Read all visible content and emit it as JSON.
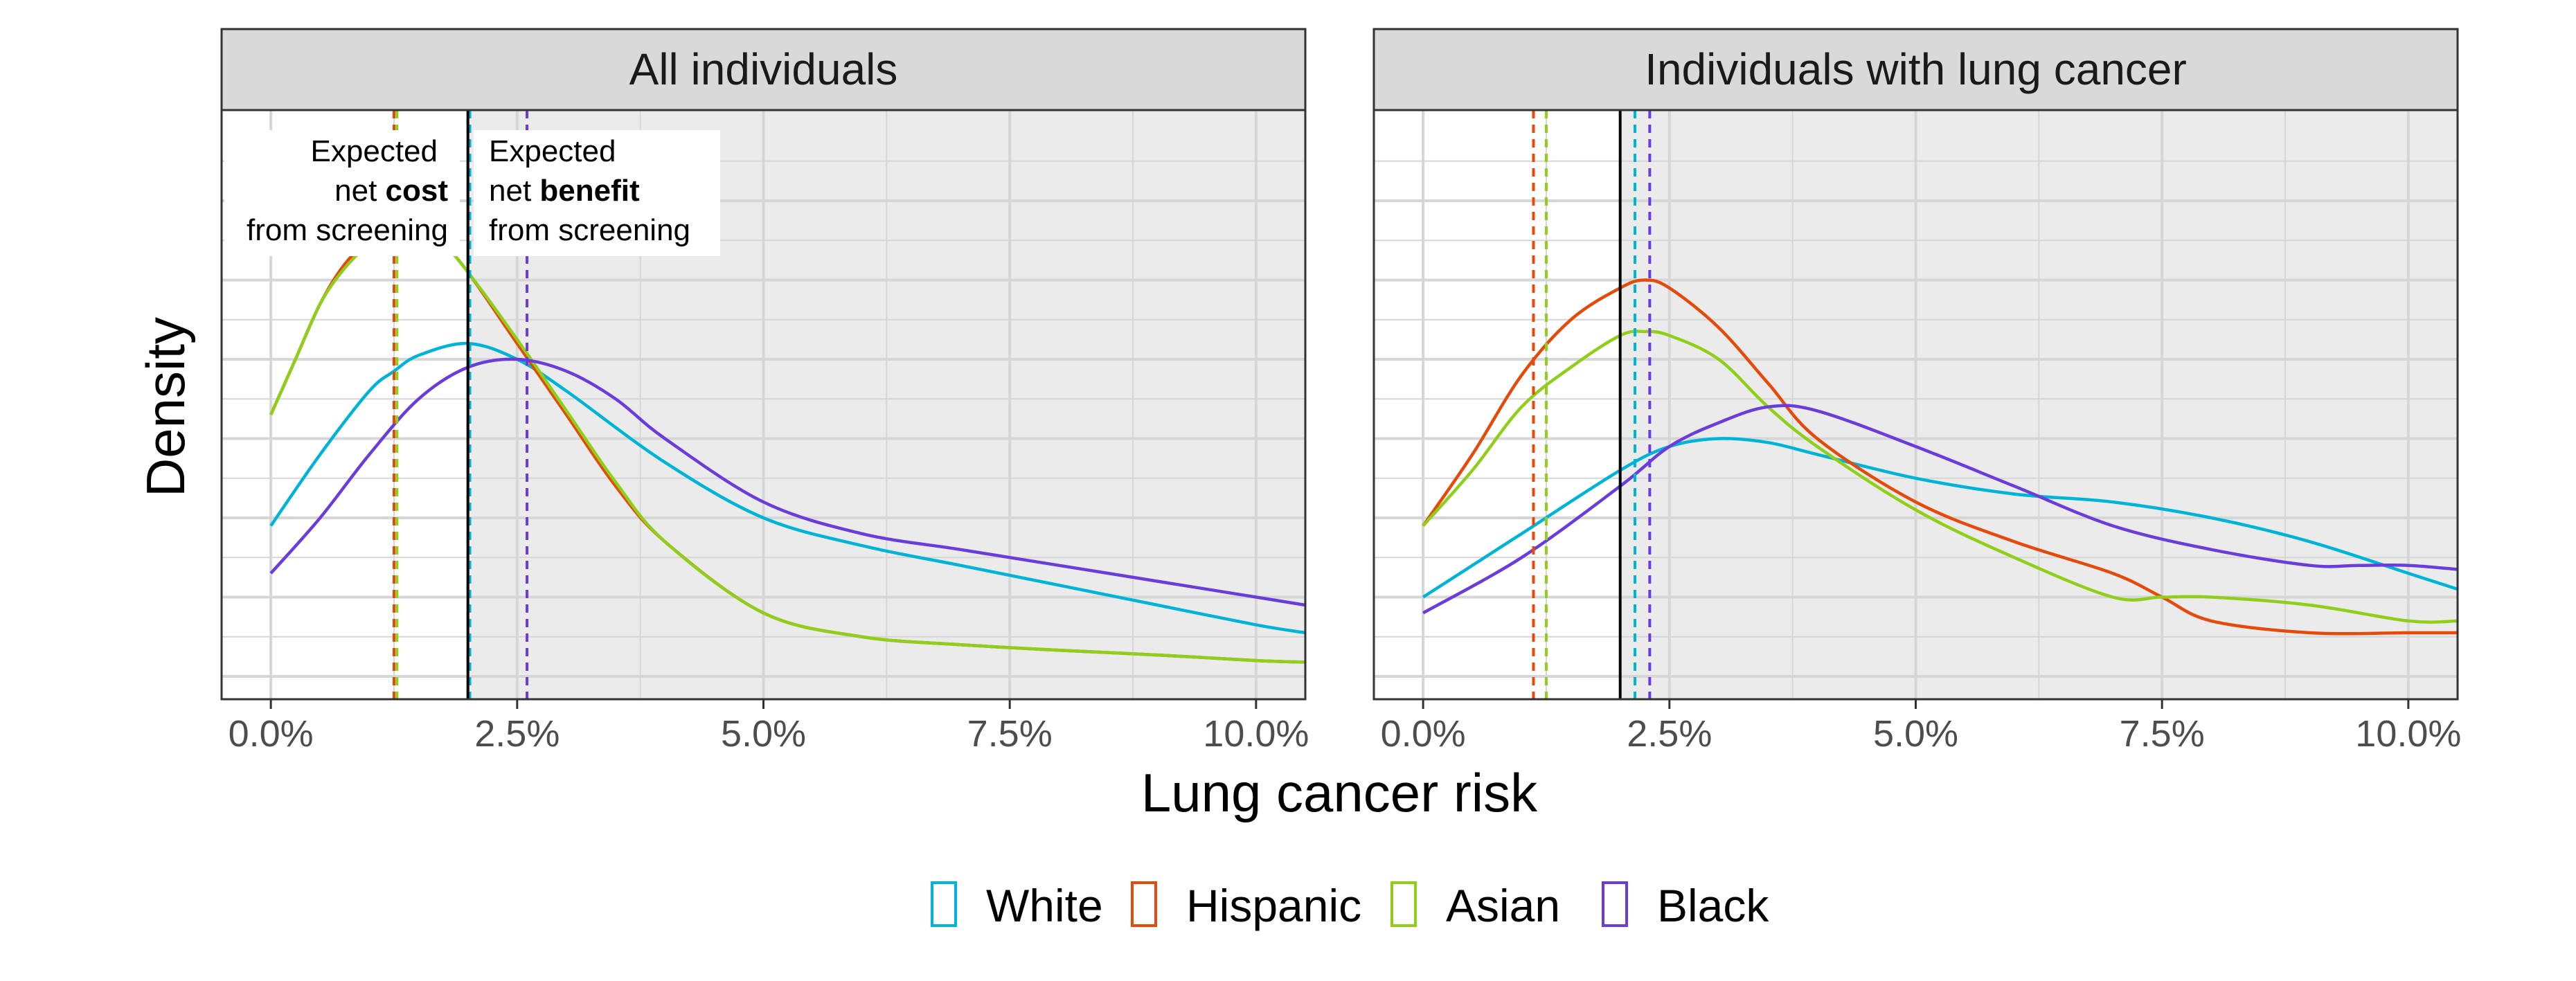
{
  "chart_data": {
    "type": "line",
    "subtype": "density",
    "xlabel": "Lung cancer risk",
    "ylabel": "Density",
    "xlim": [
      -0.5,
      10.5
    ],
    "x_ticks": [
      0,
      2.5,
      5,
      7.5,
      10
    ],
    "x_tick_labels": [
      "0.0%",
      "2.5%",
      "5.0%",
      "7.5%",
      "10.0%"
    ],
    "shaded_region": "x > 2.0% (grey background), x < 2.0% (white background)",
    "threshold": {
      "x": 2.0,
      "style": "solid",
      "color": "#000000"
    },
    "legend": {
      "position": "bottom",
      "entries": [
        "White",
        "Hispanic",
        "Asian",
        "Black"
      ]
    },
    "colors": {
      "White": "#00b4d8",
      "Hispanic": "#e64a0a",
      "Asian": "#8fcf1a",
      "Black": "#6a3cdc"
    },
    "panels": [
      {
        "title": "All individuals",
        "annotations": {
          "left": [
            "Expected",
            "net ",
            "cost",
            "from screening"
          ],
          "right": [
            "Expected",
            "net ",
            "benefit",
            "from screening"
          ]
        },
        "means": {
          "White": 2.02,
          "Hispanic": 1.25,
          "Asian": 1.28,
          "Black": 2.6
        },
        "series": [
          {
            "name": "White",
            "x": [
              0,
              0.5,
              1,
              1.25,
              1.5,
              2,
              2.5,
              3,
              4,
              5,
              6,
              7,
              8,
              9,
              10,
              10.5
            ],
            "y": [
              0.19,
              0.28,
              0.36,
              0.385,
              0.405,
              0.42,
              0.4,
              0.36,
              0.27,
              0.2,
              0.165,
              0.14,
              0.115,
              0.09,
              0.065,
              0.055
            ]
          },
          {
            "name": "Hispanic",
            "x": [
              0,
              0.25,
              0.5,
              0.75,
              1,
              1.25,
              1.5,
              1.75,
              2,
              2.5,
              3,
              3.5,
              4,
              5,
              6,
              7,
              8,
              9,
              10,
              10.5
            ],
            "y": [
              0.33,
              0.4,
              0.47,
              0.52,
              0.55,
              0.565,
              0.565,
              0.545,
              0.51,
              0.42,
              0.33,
              0.24,
              0.17,
              0.08,
              0.05,
              0.04,
              0.033,
              0.027,
              0.02,
              0.018
            ]
          },
          {
            "name": "Asian",
            "x": [
              0,
              0.25,
              0.5,
              0.75,
              1,
              1.25,
              1.5,
              1.75,
              2,
              2.5,
              3,
              3.5,
              4,
              5,
              6,
              7,
              8,
              9,
              10,
              10.5
            ],
            "y": [
              0.33,
              0.4,
              0.47,
              0.515,
              0.545,
              0.56,
              0.56,
              0.545,
              0.51,
              0.425,
              0.335,
              0.245,
              0.17,
              0.08,
              0.05,
              0.04,
              0.033,
              0.027,
              0.02,
              0.018
            ]
          },
          {
            "name": "Black",
            "x": [
              0,
              0.5,
              1,
              1.5,
              2,
              2.5,
              3,
              3.5,
              4,
              5,
              6,
              7,
              8,
              9,
              10,
              10.5
            ],
            "y": [
              0.13,
              0.2,
              0.28,
              0.35,
              0.39,
              0.4,
              0.385,
              0.35,
              0.3,
              0.22,
              0.18,
              0.16,
              0.14,
              0.12,
              0.1,
              0.09
            ]
          }
        ]
      },
      {
        "title": "Individuals with lung cancer",
        "means": {
          "White": 2.15,
          "Hispanic": 1.12,
          "Asian": 1.25,
          "Black": 2.3
        },
        "series": [
          {
            "name": "White",
            "x": [
              0,
              1,
              2,
              2.5,
              3,
              3.5,
              4,
              5,
              6,
              7,
              8,
              9,
              10,
              10.5
            ],
            "y": [
              0.1,
              0.18,
              0.26,
              0.29,
              0.3,
              0.295,
              0.28,
              0.25,
              0.23,
              0.22,
              0.2,
              0.17,
              0.13,
              0.11
            ]
          },
          {
            "name": "Hispanic",
            "x": [
              0,
              0.5,
              1,
              1.5,
              2,
              2.25,
              2.5,
              3,
              3.5,
              4,
              5,
              6,
              7,
              7.5,
              8,
              9,
              10,
              10.5
            ],
            "y": [
              0.19,
              0.28,
              0.38,
              0.45,
              0.49,
              0.5,
              0.49,
              0.44,
              0.37,
              0.3,
              0.22,
              0.17,
              0.13,
              0.1,
              0.07,
              0.055,
              0.055,
              0.055
            ]
          },
          {
            "name": "Asian",
            "x": [
              0,
              0.5,
              1,
              1.5,
              2,
              2.25,
              2.5,
              3,
              3.5,
              4,
              5,
              6,
              7,
              7.5,
              8,
              9,
              10,
              10.5
            ],
            "y": [
              0.19,
              0.26,
              0.34,
              0.39,
              0.43,
              0.435,
              0.43,
              0.4,
              0.34,
              0.29,
              0.21,
              0.15,
              0.1,
              0.1,
              0.1,
              0.09,
              0.07,
              0.07
            ]
          },
          {
            "name": "Black",
            "x": [
              0,
              1,
              2,
              2.5,
              3,
              3.5,
              4,
              5,
              6,
              7,
              8,
              9,
              9.5,
              10,
              10.5
            ],
            "y": [
              0.08,
              0.15,
              0.24,
              0.29,
              0.32,
              0.34,
              0.335,
              0.29,
              0.24,
              0.19,
              0.16,
              0.14,
              0.14,
              0.14,
              0.135
            ]
          }
        ]
      }
    ]
  }
}
